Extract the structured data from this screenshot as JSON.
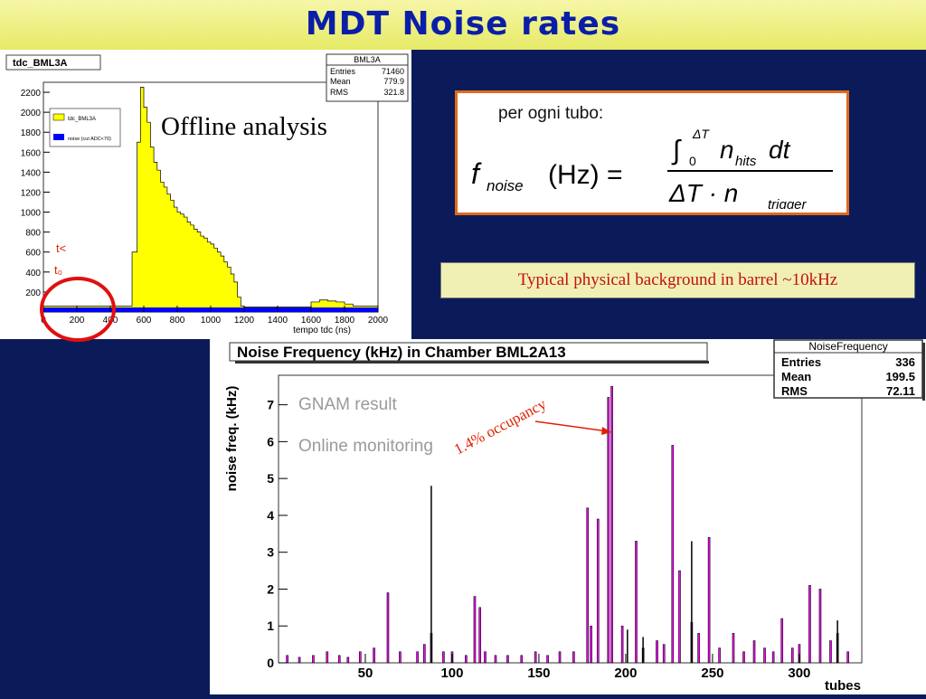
{
  "slide": {
    "title": "MDT Noise rates"
  },
  "formula_box": {
    "label": "per ogni tubo:",
    "lhs": "f",
    "lhs_sub": "noise",
    "lhs_unit": "(Hz) =",
    "num_int": "∫",
    "num_upper": "ΔT",
    "num_lower": "0",
    "num_n": "n",
    "num_n_sub": "hits",
    "num_dt": "dt",
    "den_dt": "ΔT · n",
    "den_sub": "trigger"
  },
  "typical_note": "Typical physical background in barrel ~10kHz",
  "colors": {
    "title": "#0a1ea8",
    "background": "#0b1b5a",
    "yellow_hist": "#ffff00",
    "blue_hist": "#0000ff",
    "magenta_hist": "#ff00ff",
    "red_circle": "#e01010",
    "formula_border": "#e06b1a"
  },
  "chart_data": [
    {
      "type": "bar",
      "histogram_title": "tdc_BML3A",
      "stats": {
        "name": "BML3A",
        "rows": [
          {
            "k": "Entries",
            "v": "71460"
          },
          {
            "k": "Mean",
            "v": "779.9"
          },
          {
            "k": "RMS",
            "v": "321.8"
          }
        ]
      },
      "annotation": "Offline analysis",
      "t_markers": [
        "t<",
        "t₀"
      ],
      "legend": [
        "tdc_BML3A",
        "noise (cut ADC<70)"
      ],
      "xlabel": "tempo tdc (ns)",
      "xlim": [
        0,
        2000
      ],
      "ylim": [
        0,
        2300
      ],
      "xticks": [
        0,
        200,
        400,
        600,
        800,
        1000,
        1200,
        1400,
        1600,
        1800,
        2000
      ],
      "yticks": [
        200,
        400,
        600,
        800,
        1000,
        1200,
        1400,
        1600,
        1800,
        2000,
        2200
      ],
      "series": [
        {
          "name": "tdc_BML3A",
          "x": [
            0,
            500,
            530,
            560,
            580,
            600,
            620,
            640,
            660,
            680,
            700,
            720,
            740,
            760,
            780,
            800,
            820,
            840,
            860,
            880,
            900,
            920,
            940,
            960,
            980,
            1000,
            1020,
            1040,
            1060,
            1080,
            1100,
            1120,
            1140,
            1160,
            1180,
            1200,
            1220,
            1600,
            1650,
            1700,
            1750,
            1800,
            1850,
            2000
          ],
          "values": [
            60,
            60,
            600,
            1700,
            2250,
            2050,
            1900,
            1650,
            1500,
            1420,
            1300,
            1250,
            1180,
            1120,
            1050,
            1000,
            980,
            950,
            900,
            870,
            830,
            800,
            760,
            740,
            700,
            680,
            640,
            600,
            560,
            500,
            450,
            380,
            300,
            150,
            60,
            50,
            50,
            100,
            120,
            110,
            100,
            80,
            60,
            50
          ]
        },
        {
          "name": "noise (cut ADC<70)",
          "x": [
            0,
            2000
          ],
          "values": [
            45,
            45
          ]
        }
      ]
    },
    {
      "type": "bar",
      "histogram_title": "Noise Frequency (kHz) in Chamber BML2A13",
      "stats": {
        "name": "NoiseFrequency",
        "rows": [
          {
            "k": "Entries",
            "v": "336"
          },
          {
            "k": "Mean",
            "v": "199.5"
          },
          {
            "k": "RMS",
            "v": "72.11"
          }
        ]
      },
      "annotation": "1.4% occupancy",
      "legend": [
        "GNAM result",
        "Online monitoring"
      ],
      "xlabel": "tubes",
      "ylabel": "noise freq. (kHz)",
      "xlim": [
        0,
        336
      ],
      "ylim": [
        0,
        7.8
      ],
      "xticks": [
        50,
        100,
        150,
        200,
        250,
        300
      ],
      "yticks": [
        0,
        1,
        2,
        3,
        4,
        5,
        6,
        7
      ],
      "series": [
        {
          "name": "Online monitoring",
          "x": [
            5,
            12,
            20,
            28,
            35,
            40,
            47,
            55,
            63,
            70,
            80,
            84,
            88,
            95,
            100,
            108,
            113,
            116,
            119,
            125,
            132,
            140,
            148,
            155,
            162,
            170,
            178,
            180,
            184,
            190,
            192,
            198,
            206,
            210,
            218,
            222,
            227,
            231,
            238,
            242,
            248,
            254,
            262,
            268,
            274,
            280,
            285,
            290,
            296,
            300,
            306,
            312,
            318,
            322,
            328
          ],
          "values": [
            0.2,
            0.15,
            0.2,
            0.3,
            0.2,
            0.15,
            0.3,
            0.4,
            1.9,
            0.3,
            0.3,
            0.5,
            0.8,
            0.3,
            0.3,
            0.2,
            1.8,
            1.5,
            0.3,
            0.2,
            0.2,
            0.2,
            0.3,
            0.2,
            0.3,
            0.3,
            4.2,
            1.0,
            3.9,
            7.2,
            7.5,
            1.0,
            3.3,
            0.4,
            0.6,
            0.5,
            5.9,
            2.5,
            1.1,
            0.8,
            3.4,
            0.4,
            0.8,
            0.3,
            0.6,
            0.4,
            0.3,
            1.2,
            0.4,
            0.5,
            2.1,
            2.0,
            0.6,
            0.8,
            0.3
          ]
        },
        {
          "name": "GNAM result",
          "x": [
            88,
            201,
            210,
            238,
            322
          ],
          "values": [
            4.8,
            0.9,
            0.7,
            3.3,
            1.15
          ]
        }
      ]
    }
  ]
}
